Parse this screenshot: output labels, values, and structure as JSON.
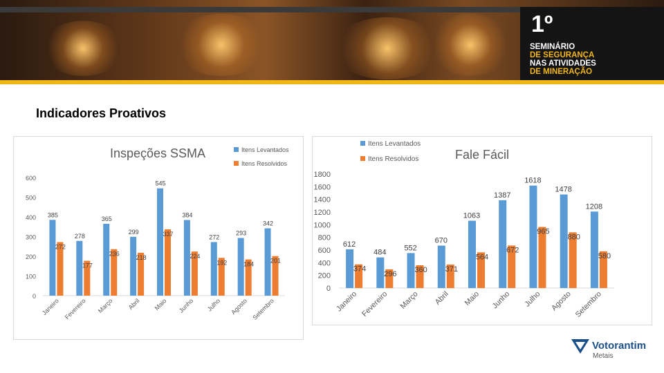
{
  "header": {
    "logo_number": "1º",
    "logo_lines": [
      {
        "text": "SEMINÁRIO",
        "color": "#ffffff"
      },
      {
        "text": "DE SEGURANÇA",
        "color": "#f2b619"
      },
      {
        "text": "NAS ATIVIDADES",
        "color": "#ffffff"
      },
      {
        "text": "DE MINERAÇÃO",
        "color": "#f2b619"
      }
    ]
  },
  "page": {
    "title": "Indicadores Proativos"
  },
  "footer": {
    "brand": "Votorantim",
    "sub": "Metais",
    "brand_color": "#1a4f8b"
  },
  "chart_data": [
    {
      "type": "bar",
      "title": "Inspeções SSMA",
      "categories": [
        "Janeiro",
        "Fevereiro",
        "Março",
        "Abril",
        "Maio",
        "Junho",
        "Julho",
        "Agosto",
        "Setembro"
      ],
      "series": [
        {
          "name": "Itens Levantados",
          "color": "#5b9bd5",
          "values": [
            385,
            278,
            365,
            299,
            545,
            384,
            272,
            293,
            342
          ]
        },
        {
          "name": "Itens Resolvidos",
          "color": "#ed7d31",
          "values": [
            272,
            177,
            236,
            218,
            337,
            224,
            192,
            184,
            201
          ]
        }
      ],
      "ylim": [
        0,
        600
      ],
      "yticks": [
        "0",
        "100",
        "200",
        "300",
        "400",
        "500",
        "600"
      ],
      "legend": "top-right",
      "grid": false
    },
    {
      "type": "bar",
      "title": "Fale Fácil",
      "categories": [
        "Janeiro",
        "Fevereiro",
        "Março",
        "Abril",
        "Maio",
        "Junho",
        "Julho",
        "Agosto",
        "Setembro"
      ],
      "series": [
        {
          "name": "Itens Levantados",
          "color": "#5b9bd5",
          "values": [
            612,
            484,
            552,
            670,
            1063,
            1387,
            1618,
            1478,
            1208
          ]
        },
        {
          "name": "Itens Resolvidos",
          "color": "#ed7d31",
          "values": [
            374,
            296,
            360,
            371,
            564,
            672,
            965,
            880,
            580
          ]
        }
      ],
      "ylim": [
        0,
        1800
      ],
      "yticks": [
        "0",
        "200",
        "400",
        "600",
        "800",
        "1000",
        "1200",
        "1400",
        "1600",
        "1800"
      ],
      "legend": "top-left",
      "grid": false
    }
  ]
}
